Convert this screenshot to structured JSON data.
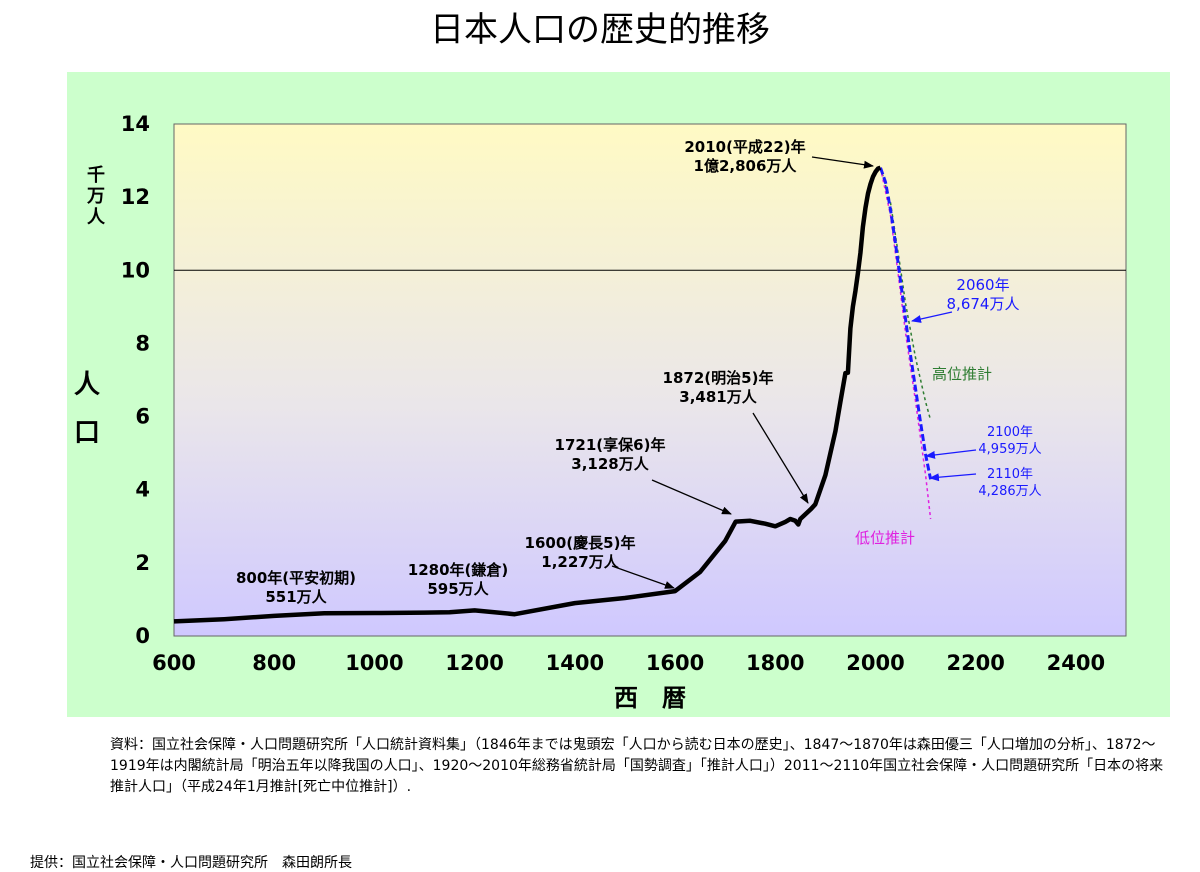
{
  "page": {
    "title": "日本人口の歴史的推移"
  },
  "chart_data": {
    "type": "line",
    "title": "日本人口の歴史的推移",
    "xlabel": "西　暦",
    "ylabel": "人口",
    "yunit": "千万人",
    "xlim": [
      600,
      2500
    ],
    "ylim": [
      0,
      14
    ],
    "xticks": [
      "600",
      "800",
      "1000",
      "1200",
      "1400",
      "1600",
      "1800",
      "2000",
      "2200",
      "2400"
    ],
    "yticks": [
      "0",
      "2",
      "4",
      "6",
      "8",
      "10",
      "12",
      "14"
    ],
    "reference_line_y": 10,
    "series": [
      {
        "name": "",
        "color": "#000000",
        "x": [
          600,
          700,
          800,
          900,
          1000,
          1100,
          1150,
          1200,
          1280,
          1400,
          1500,
          1600,
          1650,
          1700,
          1721,
          1750,
          1780,
          1800,
          1820,
          1830,
          1840,
          1846,
          1850,
          1872,
          1880,
          1900,
          1910,
          1920,
          1930,
          1940,
          1945,
          1950,
          1955,
          1960,
          1965,
          1970,
          1975,
          1980,
          1985,
          1990,
          1995,
          2000,
          2005,
          2010
        ],
        "y": [
          0.4,
          0.46,
          0.55,
          0.62,
          0.63,
          0.64,
          0.65,
          0.7,
          0.595,
          0.9,
          1.04,
          1.227,
          1.75,
          2.6,
          3.128,
          3.15,
          3.07,
          3.0,
          3.12,
          3.2,
          3.15,
          3.05,
          3.2,
          3.481,
          3.6,
          4.4,
          5.0,
          5.6,
          6.4,
          7.19,
          7.2,
          8.41,
          9.01,
          9.43,
          9.92,
          10.47,
          11.19,
          11.71,
          12.1,
          12.36,
          12.56,
          12.69,
          12.78,
          12.806
        ]
      },
      {
        "name": "",
        "color": "#1a1aff",
        "x": [
          2010,
          2020,
          2030,
          2040,
          2050,
          2060,
          2070,
          2080,
          2090,
          2100,
          2110
        ],
        "y": [
          12.806,
          12.41,
          11.66,
          10.73,
          9.71,
          8.674,
          7.68,
          6.75,
          5.83,
          4.959,
          4.286
        ]
      },
      {
        "name": "高位推計",
        "color": "#2e7d32",
        "x": [
          2010,
          2030,
          2050,
          2060,
          2080,
          2100,
          2110
        ],
        "y": [
          12.806,
          11.85,
          10.05,
          9.1,
          7.6,
          6.4,
          5.9
        ]
      },
      {
        "name": "低位推計",
        "color": "#e020e0",
        "x": [
          2010,
          2030,
          2050,
          2060,
          2080,
          2100,
          2110
        ],
        "y": [
          12.806,
          11.5,
          9.4,
          8.3,
          6.4,
          4.4,
          3.2
        ]
      }
    ],
    "annotations": [
      {
        "line1": "800年(平安初期)",
        "line2": "551万人",
        "x": 800,
        "y": 0.551
      },
      {
        "line1": "1280年(鎌倉)",
        "line2": "595万人",
        "x": 1280,
        "y": 0.595
      },
      {
        "line1": "1600(慶長5)年",
        "line2": "1,227万人",
        "x": 1600,
        "y": 1.227
      },
      {
        "line1": "1721(享保6)年",
        "line2": "3,128万人",
        "x": 1721,
        "y": 3.128
      },
      {
        "line1": "1872(明治5)年",
        "line2": "3,481万人",
        "x": 1872,
        "y": 3.481
      },
      {
        "line1": "2010(平成22)年",
        "line2": "1億2,806万人",
        "x": 2010,
        "y": 12.806
      },
      {
        "line1": "2060年",
        "line2": "8,674万人",
        "x": 2060,
        "y": 8.674
      },
      {
        "line1": "2100年",
        "line2": "4,959万人",
        "x": 2100,
        "y": 4.959
      },
      {
        "line1": "2110年",
        "line2": "4,286万人",
        "x": 2110,
        "y": 4.286
      }
    ],
    "y_axis_vertical_label": [
      "人",
      "口"
    ],
    "y_axis_unit_vertical": [
      "千",
      "万",
      "人"
    ]
  },
  "notes": {
    "source": "資料：国立社会保障・人口問題研究所「人口統計資料集」（1846年までは鬼頭宏「人口から読む日本の歴史」、1847～1870年は森田優三「人口増加の分析」、1872～1919年は内閣統計局「明治五年以降我国の人口」、1920～2010年総務省統計局「国勢調査」「推計人口」）2011～2110年国立社会保障・人口問題研究所「日本の将来推計人口」（平成24年1月推計[死亡中位推計]）.",
    "credit": "提供：国立社会保障・人口問題研究所　森田朗所長"
  }
}
